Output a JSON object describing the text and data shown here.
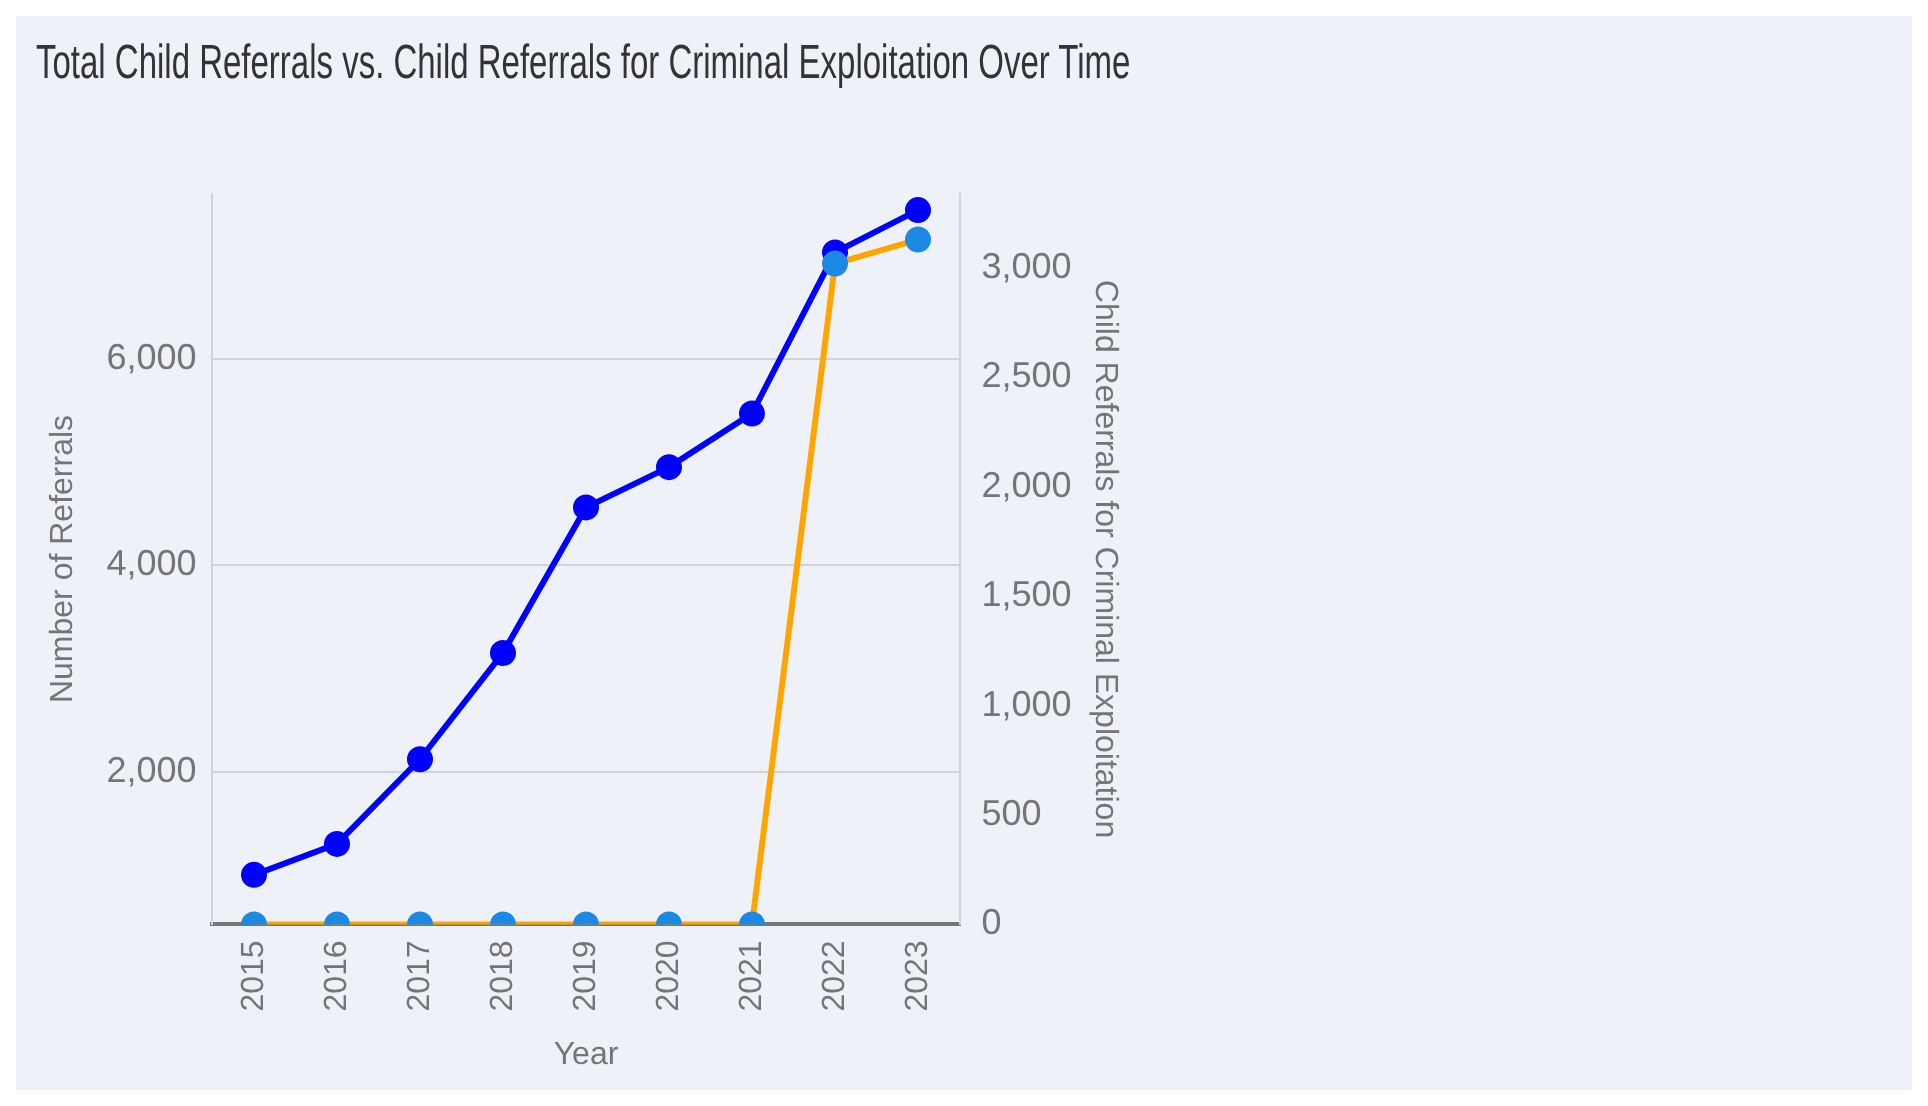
{
  "chart_data": {
    "type": "line",
    "title": "Total Child Referrals vs. Child Referrals for Criminal Exploitation Over Time",
    "xlabel": "Year",
    "ylabel": "Number of Referrals",
    "y2label": "Child Referrals for Criminal Exploitation",
    "categories": [
      "2015",
      "2016",
      "2017",
      "2018",
      "2019",
      "2020",
      "2021",
      "2022",
      "2023"
    ],
    "series": [
      {
        "color": "#0000ff",
        "values": [
          1000,
          1300,
          2120,
          3150,
          4560,
          4950,
          5470,
          7030,
          7440
        ]
      },
      {
        "color": "#ffa500",
        "colors": [
          "#1e88e5",
          "#1e88e5",
          "#1e88e5",
          "#1e88e5",
          "#1e88e5",
          "#1e88e5",
          "#1e88e5",
          "#1e88e5",
          "#1e88e5"
        ],
        "axis": "y2",
        "values": [
          0,
          0,
          0,
          0,
          0,
          0,
          0,
          3020,
          3130
        ]
      }
    ],
    "ylim": [
      520,
      7600
    ],
    "yticks": [
      {
        "value": 2000,
        "label": "2,000"
      },
      {
        "value": 4000,
        "label": "4,000"
      },
      {
        "value": 6000,
        "label": "6,000"
      }
    ],
    "y2lim": [
      0,
      3340
    ],
    "y2ticks": [
      0,
      500,
      {
        "value": 1000,
        "label": "1,000"
      },
      {
        "value": 1500,
        "label": "1,500"
      },
      {
        "value": 2000,
        "label": "2,000"
      },
      {
        "value": 2500,
        "label": "2,500"
      },
      {
        "value": 3000,
        "label": "3,000"
      }
    ],
    "grid": "y",
    "legend": false,
    "marker": "circle",
    "line_style": "solid"
  }
}
